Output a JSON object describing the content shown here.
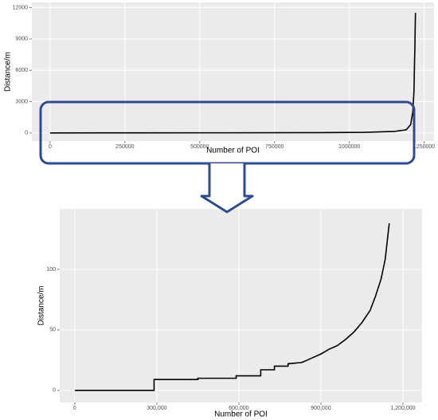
{
  "chart_data": [
    {
      "type": "line",
      "xlabel": "Number of POI",
      "ylabel": "Distance/m",
      "color": "#000000",
      "grid": true,
      "x": [
        0,
        290000,
        600000,
        900000,
        1050000,
        1150000,
        1190000,
        1205000,
        1212000,
        1216000,
        1218000,
        1219000,
        1220000,
        1221000
      ],
      "values": [
        0,
        9,
        12,
        30,
        56,
        138,
        300,
        800,
        2000,
        4000,
        7000,
        8000,
        10000,
        11500
      ],
      "xlim": [
        -61000,
        1283000
      ],
      "ylim": [
        -780,
        12500
      ],
      "xticks": [
        0,
        250000,
        500000,
        750000,
        1000000,
        1250000
      ],
      "yticks": [
        0,
        3000,
        6000,
        9000,
        12000
      ]
    },
    {
      "type": "line",
      "xlabel": "Number of POI",
      "ylabel": "Distance/m",
      "color": "#000000",
      "grid": true,
      "x": [
        0,
        290000,
        290000,
        450000,
        450000,
        590000,
        590000,
        680000,
        680000,
        730000,
        730000,
        780000,
        780000,
        830000,
        860000,
        900000,
        930000,
        960000,
        990000,
        1020000,
        1050000,
        1080000,
        1100000,
        1120000,
        1135000,
        1150000
      ],
      "values": [
        0,
        0,
        9,
        9,
        10,
        10,
        12,
        12,
        17,
        17,
        20,
        20,
        22,
        23,
        26,
        30,
        34,
        37,
        42,
        48,
        56,
        66,
        78,
        92,
        108,
        138
      ],
      "xlim": [
        -55000,
        1270000
      ],
      "ylim": [
        -10,
        150
      ],
      "xticks": [
        0,
        {
          "value": 300000,
          "label": "300,000"
        },
        {
          "value": 600000,
          "label": "600,000"
        },
        {
          "value": 900000,
          "label": "900,000"
        },
        {
          "value": 1200000,
          "label": "1,200,000"
        }
      ],
      "yticks": [
        0,
        50,
        100
      ]
    }
  ]
}
